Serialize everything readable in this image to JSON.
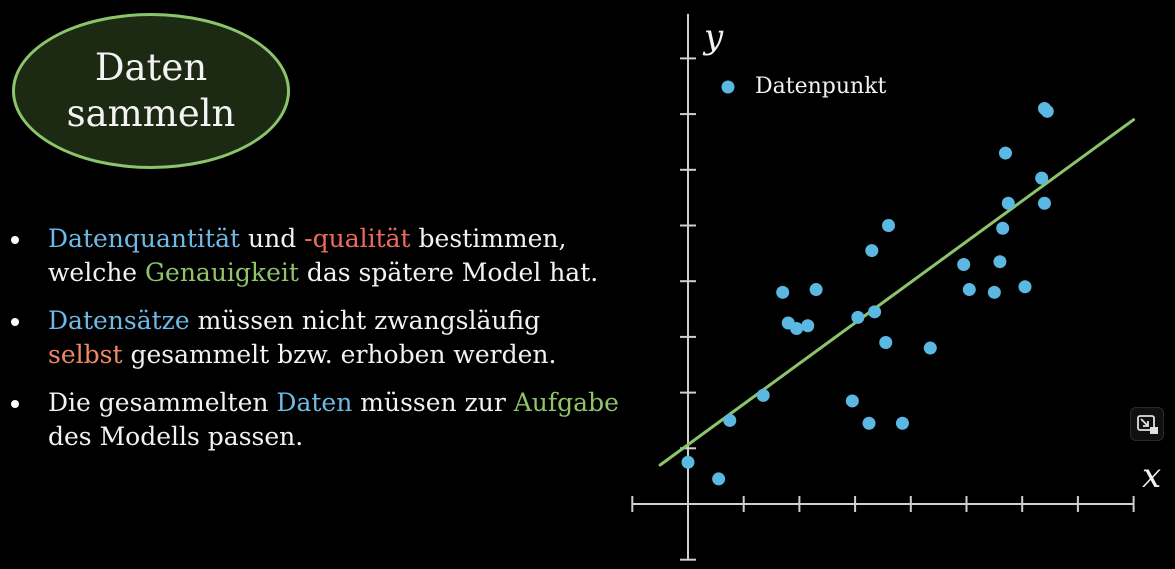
{
  "badge": {
    "title": "Daten sammeln",
    "bg_color": "#1c2a14",
    "border_color": "#8cc46c"
  },
  "bullets": [
    {
      "parts": [
        {
          "text": "Datenquantität",
          "color": "blue"
        },
        {
          "text": " und ",
          "color": "white"
        },
        {
          "text": "-qualität",
          "color": "red"
        },
        {
          "text": " bestimmen, welche ",
          "color": "white"
        },
        {
          "text": "Genauigkeit",
          "color": "green"
        },
        {
          "text": " das spätere Model hat.",
          "color": "white"
        }
      ]
    },
    {
      "parts": [
        {
          "text": "Datensätze",
          "color": "blue"
        },
        {
          "text": " müssen nicht zwangsläufig ",
          "color": "white"
        },
        {
          "text": "selbst",
          "color": "orange"
        },
        {
          "text": " gesammelt bzw. erhoben werden.",
          "color": "white"
        }
      ]
    },
    {
      "parts": [
        {
          "text": "Die gesammelten ",
          "color": "white"
        },
        {
          "text": "Daten",
          "color": "blue"
        },
        {
          "text": " müssen zur ",
          "color": "white"
        },
        {
          "text": "Aufgabe",
          "color": "green"
        },
        {
          "text": " des Modells passen.",
          "color": "white"
        }
      ]
    }
  ],
  "colors": {
    "blue": "#6fb9e6",
    "red": "#ef6a5a",
    "green": "#8fc46b",
    "orange": "#f08a64",
    "white": "#f2f2f2",
    "point": "#5ab8e2",
    "fit_line": "#8cc46c",
    "axis": "#cfcfcf"
  },
  "chart_data": {
    "type": "scatter",
    "xlabel": "x",
    "ylabel": "y",
    "xlim": [
      -1,
      8
    ],
    "ylim": [
      -1,
      8.8
    ],
    "grid": false,
    "legend": {
      "placement": "top-left",
      "entries": [
        "Datenpunkt"
      ]
    },
    "series": [
      {
        "name": "Datenpunkt",
        "x": [
          0.0,
          0.55,
          0.75,
          1.35,
          1.7,
          1.8,
          1.95,
          2.15,
          2.3,
          2.95,
          3.05,
          3.25,
          3.3,
          3.35,
          3.55,
          3.6,
          3.85,
          4.35,
          4.95,
          5.05,
          5.5,
          5.6,
          5.65,
          5.7,
          5.75,
          6.05,
          6.35,
          6.4,
          6.4,
          6.45
        ],
        "y": [
          0.75,
          0.45,
          1.5,
          1.95,
          3.8,
          3.25,
          3.15,
          3.2,
          3.85,
          1.85,
          3.35,
          1.45,
          4.55,
          3.45,
          2.9,
          5.0,
          1.45,
          2.8,
          4.3,
          3.85,
          3.8,
          4.35,
          4.95,
          6.3,
          5.4,
          3.9,
          5.85,
          5.4,
          7.1,
          7.05
        ]
      },
      {
        "name": "fit",
        "kind": "line",
        "x": [
          -0.5,
          8.0
        ],
        "y": [
          0.7,
          6.9
        ]
      }
    ]
  }
}
